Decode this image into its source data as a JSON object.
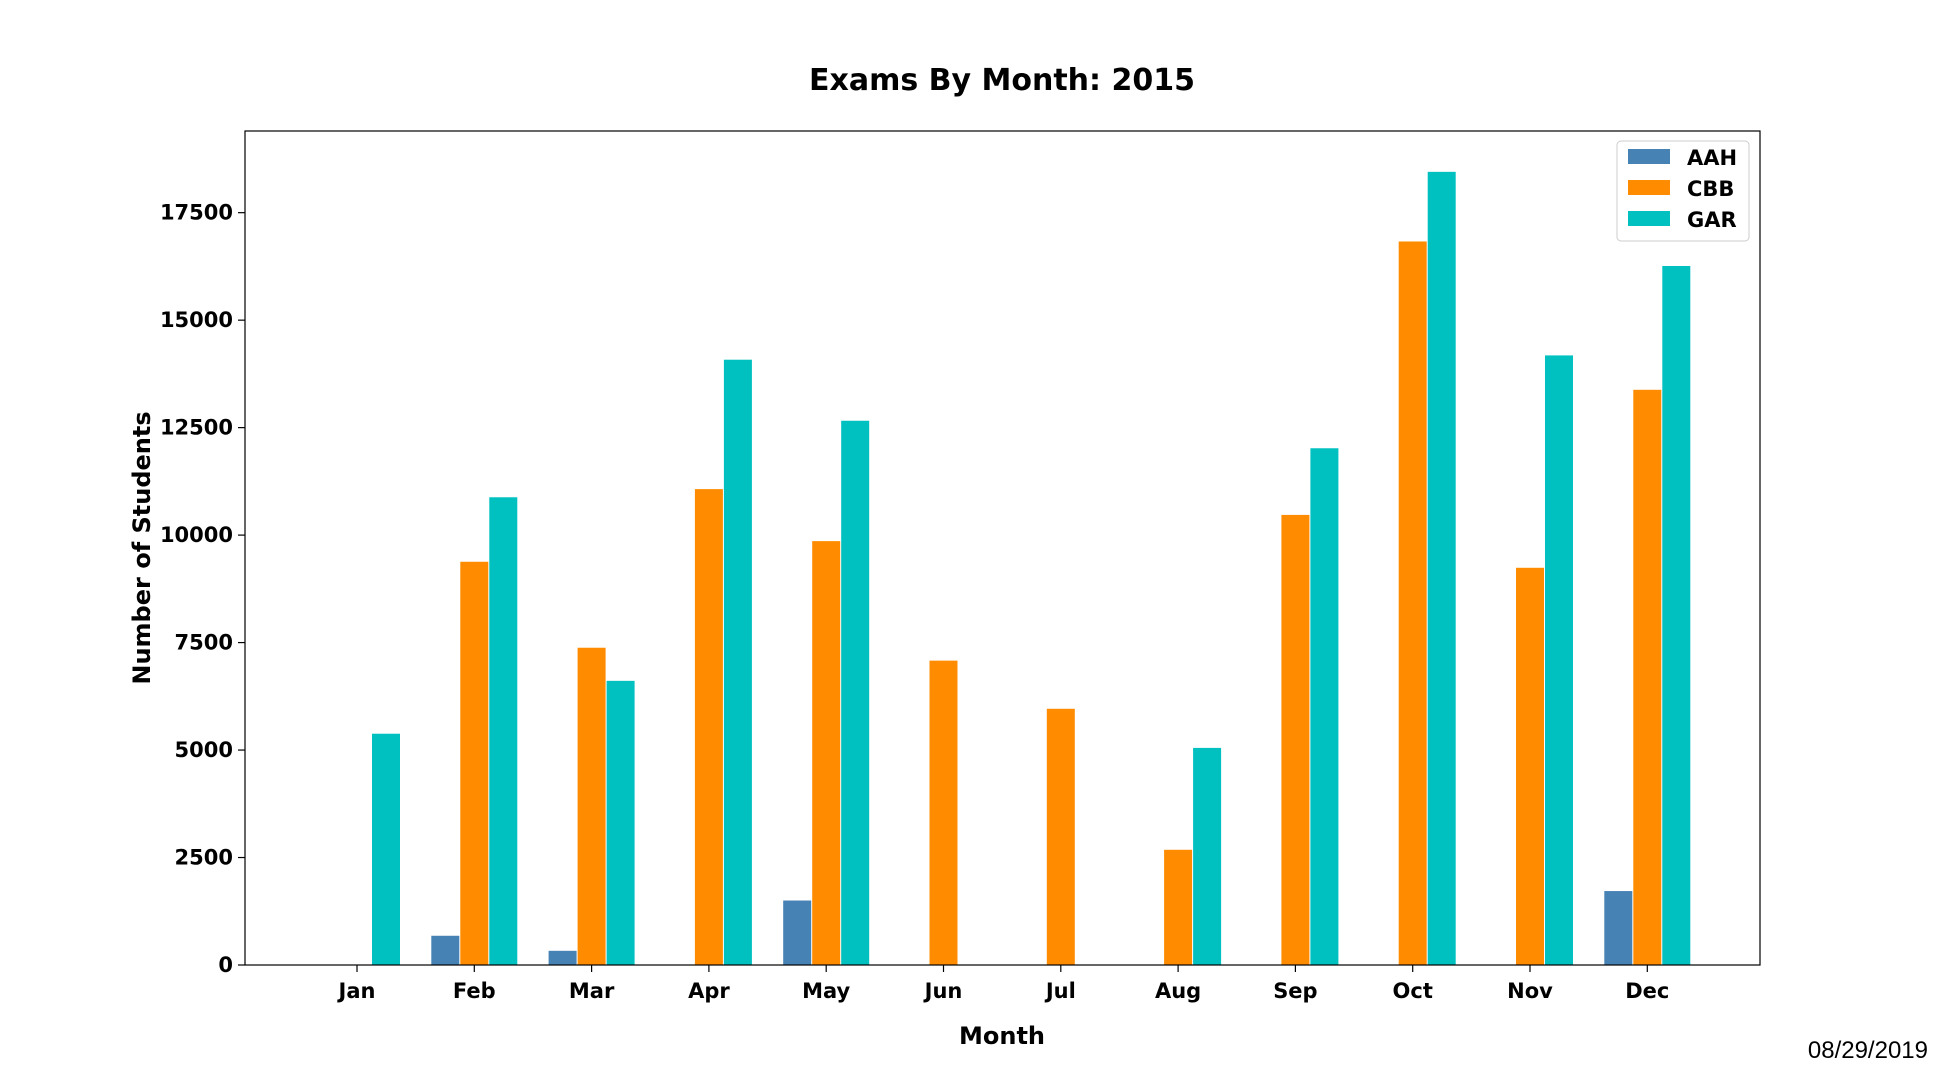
{
  "chart_data": {
    "type": "bar",
    "title": "Exams By Month: 2015",
    "xlabel": "Month",
    "ylabel": "Number of Students",
    "categories": [
      "Jan",
      "Feb",
      "Mar",
      "Apr",
      "May",
      "Jun",
      "Jul",
      "Aug",
      "Sep",
      "Oct",
      "Nov",
      "Dec"
    ],
    "series": [
      {
        "name": "AAH",
        "color": "#4682b4",
        "values": [
          0,
          680,
          330,
          0,
          1500,
          0,
          0,
          0,
          0,
          0,
          0,
          1720
        ]
      },
      {
        "name": "CBB",
        "color": "#ff8c00",
        "values": [
          0,
          9380,
          7380,
          11070,
          9860,
          7080,
          5960,
          2680,
          10470,
          16830,
          9240,
          13380
        ]
      },
      {
        "name": "GAR",
        "color": "#00c0c0",
        "values": [
          5380,
          10880,
          6610,
          14080,
          12660,
          0,
          0,
          5050,
          12020,
          18450,
          14180,
          16260
        ]
      }
    ],
    "ylim": [
      0,
      19400
    ],
    "yticks": [
      0,
      2500,
      5000,
      7500,
      10000,
      12500,
      15000,
      17500
    ],
    "legend_position": "top-right",
    "grid": false
  },
  "footer": {
    "date": "08/29/2019"
  }
}
